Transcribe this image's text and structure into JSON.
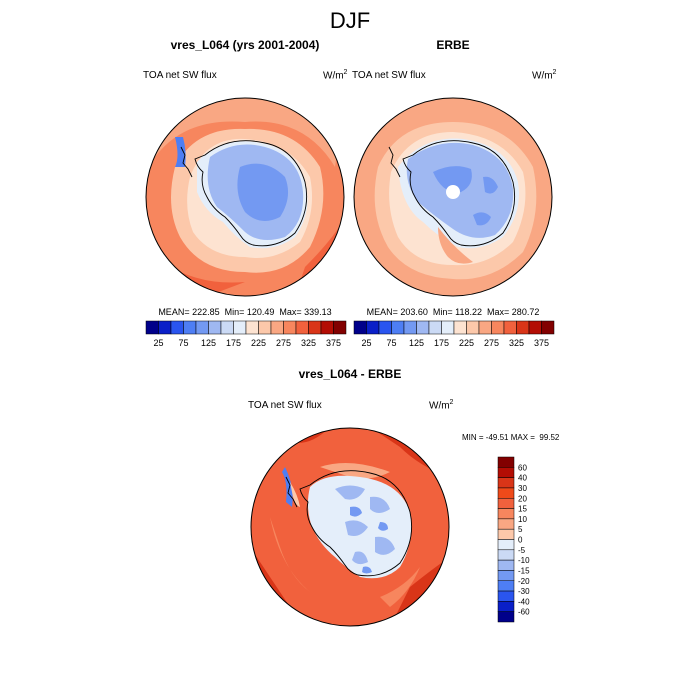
{
  "chart_data": [
    {
      "type": "heatmap",
      "projection": "south-polar-stereographic",
      "figure_title": "DJF",
      "title": "vres_L064 (yrs 2001-2004)",
      "left_label": "TOA net SW flux",
      "units": "W/m",
      "units_exp": "2",
      "stats": "MEAN= 222.85  Min= 120.49  Max= 339.13",
      "mean": 222.85,
      "min": 120.49,
      "max": 339.13,
      "colorbar": {
        "orientation": "horizontal",
        "levels": [
          25,
          50,
          75,
          100,
          125,
          150,
          175,
          200,
          225,
          250,
          275,
          300,
          325,
          350,
          375
        ],
        "tick_labels": [
          "25",
          "75",
          "125",
          "175",
          "225",
          "275",
          "325",
          "375"
        ]
      }
    },
    {
      "type": "heatmap",
      "projection": "south-polar-stereographic",
      "title": "ERBE",
      "left_label": "TOA net SW flux",
      "units": "W/m",
      "units_exp": "2",
      "stats": "MEAN= 203.60  Min= 118.22  Max= 280.72",
      "mean": 203.6,
      "min": 118.22,
      "max": 280.72,
      "colorbar": {
        "orientation": "horizontal",
        "levels": [
          25,
          50,
          75,
          100,
          125,
          150,
          175,
          200,
          225,
          250,
          275,
          300,
          325,
          350,
          375
        ],
        "tick_labels": [
          "25",
          "75",
          "125",
          "175",
          "225",
          "275",
          "325",
          "375"
        ]
      }
    },
    {
      "type": "heatmap",
      "projection": "south-polar-stereographic",
      "title": "vres_L064 - ERBE",
      "left_label": "TOA net SW flux",
      "units": "W/m",
      "units_exp": "2",
      "stats": "MIN = -49.51 MAX =  99.52",
      "min": -49.51,
      "max": 99.52,
      "colorbar": {
        "orientation": "vertical",
        "levels": [
          60,
          40,
          30,
          20,
          15,
          10,
          5,
          0,
          -5,
          -10,
          -15,
          -20,
          -30,
          -40,
          -60
        ],
        "tick_labels": [
          "60",
          "40",
          "30",
          "20",
          "15",
          "10",
          "5",
          "0",
          "-5",
          "-10",
          "-15",
          "-20",
          "-30",
          "-40",
          "-60"
        ]
      }
    }
  ],
  "palette": {
    "horizontal": [
      "#00008a",
      "#0a1fc8",
      "#2a55ef",
      "#4e7ef4",
      "#7399f2",
      "#9fb8f2",
      "#cbdaf5",
      "#e4eefa",
      "#fde3d1",
      "#fcc8aa",
      "#f9a783",
      "#f7865e",
      "#f1613d",
      "#d93518",
      "#b30d04",
      "#820000"
    ],
    "vertical": [
      "#820000",
      "#b30d04",
      "#d93518",
      "#ef4a1a",
      "#f1613d",
      "#f7865e",
      "#f9a783",
      "#fcc8aa",
      "#e4eefa",
      "#cbdaf5",
      "#9fb8f2",
      "#7399f2",
      "#4e7ef4",
      "#2a55ef",
      "#0a1fc8",
      "#00008a"
    ]
  }
}
